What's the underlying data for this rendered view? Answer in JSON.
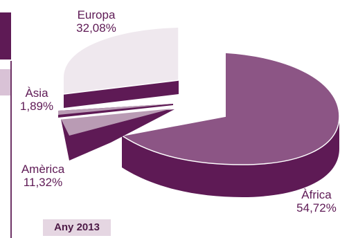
{
  "badge": "Any 2013",
  "colors": {
    "dark": "#5e1a55",
    "mid": "#8c5585",
    "light": "#efe8ee",
    "pale": "#b99bb4"
  },
  "chart_data": {
    "type": "pie",
    "style": "3d-exploded",
    "slices": [
      {
        "label": "Àfrica",
        "value": 54.72,
        "value_text": "54,72%"
      },
      {
        "label": "Europa",
        "value": 32.08,
        "value_text": "32,08%"
      },
      {
        "label": "Àsia",
        "value": 1.89,
        "value_text": "1,89%"
      },
      {
        "label": "Amèrica",
        "value": 11.32,
        "value_text": "11,32%"
      }
    ]
  }
}
